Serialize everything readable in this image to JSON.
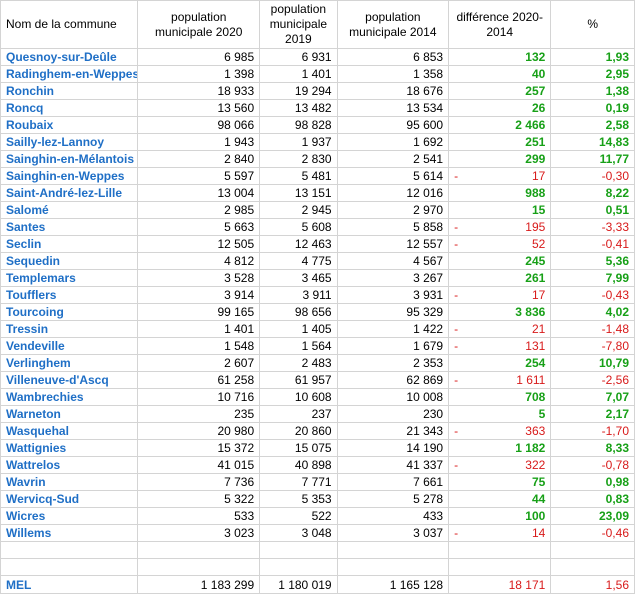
{
  "headers": [
    "Nom de la commune",
    "population municipale 2020",
    "population municipale 2019",
    "population municipale 2014",
    "différence 2020-2014",
    "%"
  ],
  "rows": [
    {
      "name": "Quesnoy-sur-Deûle",
      "p2020": "6 985",
      "p2019": "6 931",
      "p2014": "6 853",
      "diff": "132",
      "pct": "1,93",
      "neg": false
    },
    {
      "name": "Radinghem-en-Weppes",
      "p2020": "1 398",
      "p2019": "1 401",
      "p2014": "1 358",
      "diff": "40",
      "pct": "2,95",
      "neg": false
    },
    {
      "name": "Ronchin",
      "p2020": "18 933",
      "p2019": "19 294",
      "p2014": "18 676",
      "diff": "257",
      "pct": "1,38",
      "neg": false
    },
    {
      "name": "Roncq",
      "p2020": "13 560",
      "p2019": "13 482",
      "p2014": "13 534",
      "diff": "26",
      "pct": "0,19",
      "neg": false
    },
    {
      "name": "Roubaix",
      "p2020": "98 066",
      "p2019": "98 828",
      "p2014": "95 600",
      "diff": "2 466",
      "pct": "2,58",
      "neg": false
    },
    {
      "name": "Sailly-lez-Lannoy",
      "p2020": "1 943",
      "p2019": "1 937",
      "p2014": "1 692",
      "diff": "251",
      "pct": "14,83",
      "neg": false
    },
    {
      "name": "Sainghin-en-Mélantois",
      "p2020": "2 840",
      "p2019": "2 830",
      "p2014": "2 541",
      "diff": "299",
      "pct": "11,77",
      "neg": false
    },
    {
      "name": "Sainghin-en-Weppes",
      "p2020": "5 597",
      "p2019": "5 481",
      "p2014": "5 614",
      "diff": "17",
      "pct": "-0,30",
      "neg": true
    },
    {
      "name": "Saint-André-lez-Lille",
      "p2020": "13 004",
      "p2019": "13 151",
      "p2014": "12 016",
      "diff": "988",
      "pct": "8,22",
      "neg": false
    },
    {
      "name": "Salomé",
      "p2020": "2 985",
      "p2019": "2 945",
      "p2014": "2 970",
      "diff": "15",
      "pct": "0,51",
      "neg": false
    },
    {
      "name": "Santes",
      "p2020": "5 663",
      "p2019": "5 608",
      "p2014": "5 858",
      "diff": "195",
      "pct": "-3,33",
      "neg": true
    },
    {
      "name": "Seclin",
      "p2020": "12 505",
      "p2019": "12 463",
      "p2014": "12 557",
      "diff": "52",
      "pct": "-0,41",
      "neg": true
    },
    {
      "name": "Sequedin",
      "p2020": "4 812",
      "p2019": "4 775",
      "p2014": "4 567",
      "diff": "245",
      "pct": "5,36",
      "neg": false
    },
    {
      "name": "Templemars",
      "p2020": "3 528",
      "p2019": "3 465",
      "p2014": "3 267",
      "diff": "261",
      "pct": "7,99",
      "neg": false
    },
    {
      "name": "Toufflers",
      "p2020": "3 914",
      "p2019": "3 911",
      "p2014": "3 931",
      "diff": "17",
      "pct": "-0,43",
      "neg": true
    },
    {
      "name": "Tourcoing",
      "p2020": "99 165",
      "p2019": "98 656",
      "p2014": "95 329",
      "diff": "3 836",
      "pct": "4,02",
      "neg": false
    },
    {
      "name": "Tressin",
      "p2020": "1 401",
      "p2019": "1 405",
      "p2014": "1 422",
      "diff": "21",
      "pct": "-1,48",
      "neg": true
    },
    {
      "name": "Vendeville",
      "p2020": "1 548",
      "p2019": "1 564",
      "p2014": "1 679",
      "diff": "131",
      "pct": "-7,80",
      "neg": true
    },
    {
      "name": "Verlinghem",
      "p2020": "2 607",
      "p2019": "2 483",
      "p2014": "2 353",
      "diff": "254",
      "pct": "10,79",
      "neg": false
    },
    {
      "name": "Villeneuve-d'Ascq",
      "p2020": "61 258",
      "p2019": "61 957",
      "p2014": "62 869",
      "diff": "1 611",
      "pct": "-2,56",
      "neg": true
    },
    {
      "name": "Wambrechies",
      "p2020": "10 716",
      "p2019": "10 608",
      "p2014": "10 008",
      "diff": "708",
      "pct": "7,07",
      "neg": false
    },
    {
      "name": "Warneton",
      "p2020": "235",
      "p2019": "237",
      "p2014": "230",
      "diff": "5",
      "pct": "2,17",
      "neg": false
    },
    {
      "name": "Wasquehal",
      "p2020": "20 980",
      "p2019": "20 860",
      "p2014": "21 343",
      "diff": "363",
      "pct": "-1,70",
      "neg": true
    },
    {
      "name": "Wattignies",
      "p2020": "15 372",
      "p2019": "15 075",
      "p2014": "14 190",
      "diff": "1 182",
      "pct": "8,33",
      "neg": false
    },
    {
      "name": "Wattrelos",
      "p2020": "41 015",
      "p2019": "40 898",
      "p2014": "41 337",
      "diff": "322",
      "pct": "-0,78",
      "neg": true
    },
    {
      "name": "Wavrin",
      "p2020": "7 736",
      "p2019": "7 771",
      "p2014": "7 661",
      "diff": "75",
      "pct": "0,98",
      "neg": false
    },
    {
      "name": "Wervicq-Sud",
      "p2020": "5 322",
      "p2019": "5 353",
      "p2014": "5 278",
      "diff": "44",
      "pct": "0,83",
      "neg": false
    },
    {
      "name": "Wicres",
      "p2020": "533",
      "p2019": "522",
      "p2014": "433",
      "diff": "100",
      "pct": "23,09",
      "neg": false
    },
    {
      "name": "Willems",
      "p2020": "3 023",
      "p2019": "3 048",
      "p2014": "3 037",
      "diff": "14",
      "pct": "-0,46",
      "neg": true
    }
  ],
  "total": {
    "name": "MEL",
    "p2020": "1 183 299",
    "p2019": "1 180 019",
    "p2014": "1 165 128",
    "diff": "18 171",
    "pct": "1,56"
  },
  "colors": {
    "name_blue": "#1f6fc6",
    "positive_green": "#17a017",
    "negative_red": "#d81a1a",
    "grid": "#d4d4d4"
  }
}
